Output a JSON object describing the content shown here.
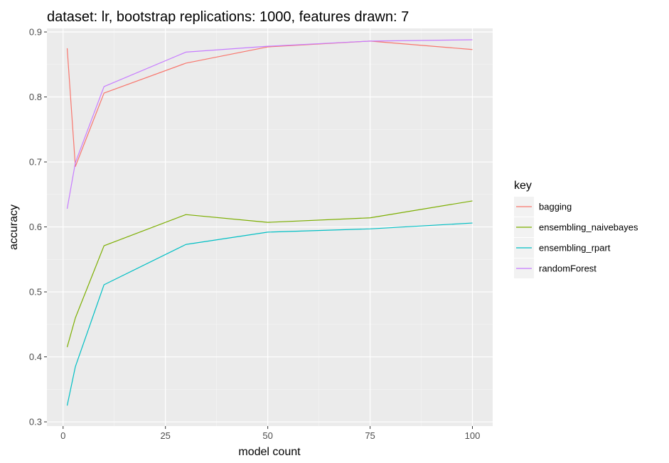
{
  "chart_data": {
    "type": "line",
    "title": "dataset: lr, bootstrap replications: 1000, features drawn: 7",
    "xlabel": "model count",
    "ylabel": "accuracy",
    "xlim": [
      -3.95,
      104.95
    ],
    "ylim": [
      0.2935,
      0.9055
    ],
    "xticks": [
      0,
      25,
      50,
      75,
      100
    ],
    "xtick_labels": [
      "0",
      "25",
      "50",
      "75",
      "100"
    ],
    "xminor": [
      12.5,
      37.5,
      62.5,
      87.5
    ],
    "yticks": [
      0.3,
      0.4,
      0.5,
      0.6,
      0.7,
      0.8,
      0.9
    ],
    "ytick_labels": [
      "0.3",
      "0.4",
      "0.5",
      "0.6",
      "0.7",
      "0.8",
      "0.9"
    ],
    "yminor": [
      0.35,
      0.45,
      0.55,
      0.65,
      0.75,
      0.85
    ],
    "grid": true,
    "legend": {
      "title": "key",
      "position": "right"
    },
    "x": [
      1,
      3,
      10,
      30,
      50,
      75,
      100
    ],
    "series": [
      {
        "name": "bagging",
        "color": "#F8766D",
        "values": [
          0.875,
          0.693,
          0.806,
          0.852,
          0.877,
          0.886,
          0.873
        ]
      },
      {
        "name": "ensembling_naivebayes",
        "color": "#7CAE00",
        "values": [
          0.415,
          0.46,
          0.571,
          0.619,
          0.607,
          0.614,
          0.64
        ]
      },
      {
        "name": "ensembling_rpart",
        "color": "#00BFC4",
        "values": [
          0.325,
          0.385,
          0.511,
          0.573,
          0.592,
          0.597,
          0.606
        ]
      },
      {
        "name": "randomForest",
        "color": "#C77CFF",
        "values": [
          0.628,
          0.699,
          0.816,
          0.869,
          0.878,
          0.886,
          0.888
        ]
      }
    ]
  }
}
